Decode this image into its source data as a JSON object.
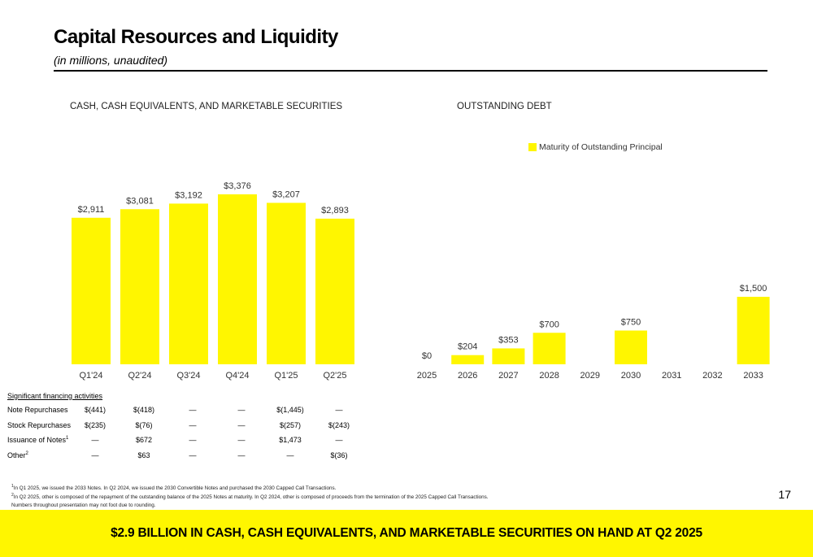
{
  "title": "Capital Resources and Liquidity",
  "subtitle": "(in millions, unaudited)",
  "colors": {
    "accent": "#fff600",
    "text": "#000000"
  },
  "chart_data": [
    {
      "type": "bar",
      "title": "CASH, CASH EQUIVALENTS, AND MARKETABLE SECURITIES",
      "categories": [
        "Q1'24",
        "Q2'24",
        "Q3'24",
        "Q4'24",
        "Q1'25",
        "Q2'25"
      ],
      "values": [
        2911,
        3081,
        3192,
        3376,
        3207,
        2893
      ],
      "labels": [
        "$2,911",
        "$3,081",
        "$3,192",
        "$3,376",
        "$3,207",
        "$2,893"
      ],
      "ylim": [
        0,
        3376
      ],
      "grid": false
    },
    {
      "type": "bar",
      "title": "OUTSTANDING DEBT",
      "categories": [
        "2025",
        "2026",
        "2027",
        "2028",
        "2029",
        "2030",
        "2031",
        "2032",
        "2033"
      ],
      "values": [
        0,
        204,
        353,
        700,
        null,
        750,
        null,
        null,
        1500
      ],
      "labels": [
        "$0",
        "$204",
        "$353",
        "$700",
        "",
        "$750",
        "",
        "",
        "$1,500"
      ],
      "series": [
        {
          "name": "Maturity of Outstanding Principal",
          "values": [
            0,
            204,
            353,
            700,
            null,
            750,
            null,
            null,
            1500
          ]
        }
      ],
      "legend": "top",
      "ylim": [
        0,
        1500
      ],
      "grid": false
    }
  ],
  "financing": {
    "title": "Significant financing activities",
    "rows": [
      {
        "label": "Note Repurchases",
        "sup": "",
        "values": [
          "$(441)",
          "$(418)",
          "—",
          "—",
          "$(1,445)",
          "—"
        ]
      },
      {
        "label": "Stock Repurchases",
        "sup": "",
        "values": [
          "$(235)",
          "$(76)",
          "—",
          "—",
          "$(257)",
          "$(243)"
        ]
      },
      {
        "label": "Issuance of Notes",
        "sup": "1",
        "values": [
          "—",
          "$672",
          "—",
          "—",
          "$1,473",
          "—"
        ]
      },
      {
        "label": "Other",
        "sup": "2",
        "values": [
          "—",
          "$63",
          "—",
          "—",
          "—",
          "$(36)"
        ]
      }
    ]
  },
  "footnotes": [
    {
      "num": "1",
      "text": "In Q1 2025, we issued the 2033 Notes. In Q2 2024, we issued the 2030 Convertible Notes and purchased the 2030 Capped Call Transactions."
    },
    {
      "num": "2",
      "text": "In Q2 2025, other is composed of the repayment of the outstanding balance of the 2025 Notes at maturity. In Q2 2024, other is composed of proceeds from the termination of the 2025 Capped Call Transactions."
    },
    {
      "num": "",
      "text": "Numbers throughout presentation may not foot due to rounding."
    }
  ],
  "page_number": "17",
  "banner": "$2.9 BILLION IN CASH, CASH EQUIVALENTS, AND MARKETABLE SECURITIES ON HAND AT Q2 2025"
}
